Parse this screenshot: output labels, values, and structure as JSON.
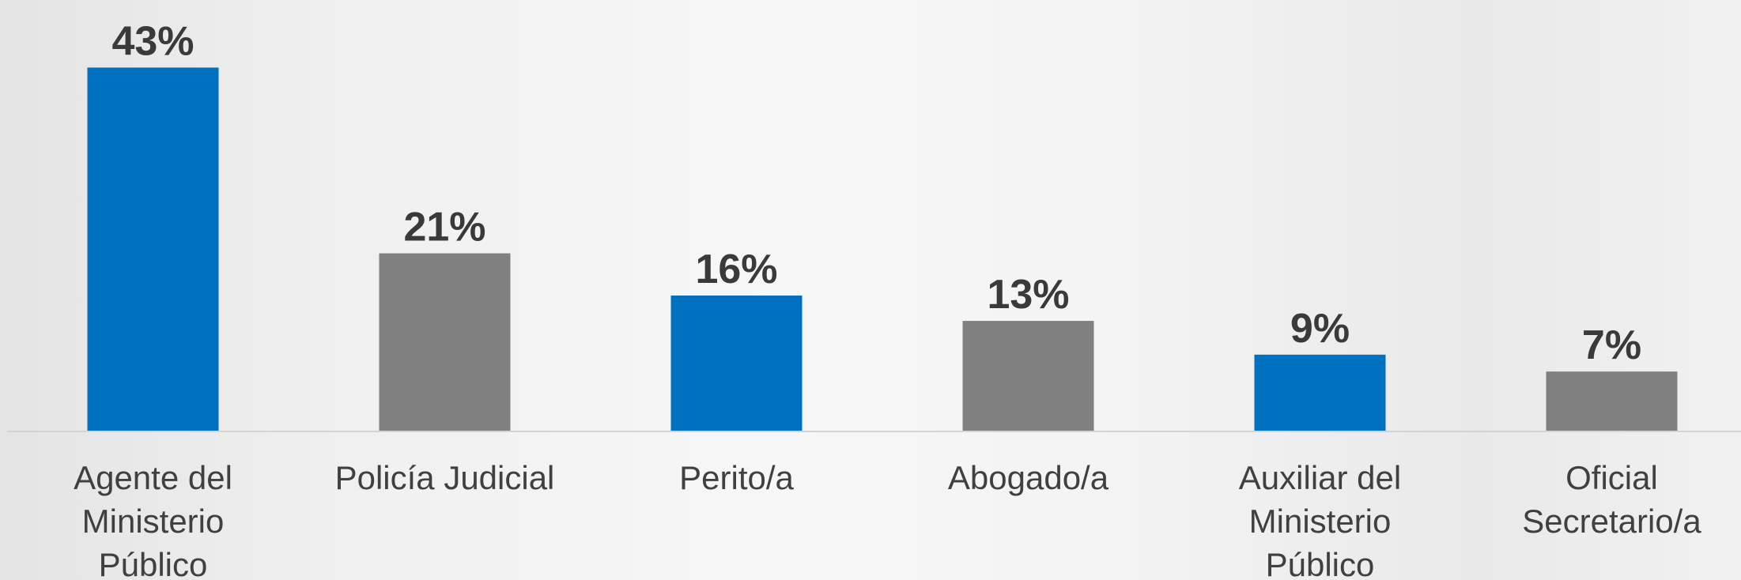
{
  "chart_data": {
    "type": "bar",
    "categories": [
      "Agente del Ministerio Público",
      "Policía Judicial",
      "Perito/a",
      "Abogado/a",
      "Auxiliar del Ministerio Público",
      "Oficial Secretario/a"
    ],
    "values": [
      43,
      21,
      16,
      13,
      9,
      7
    ],
    "value_labels": [
      "43%",
      "21%",
      "16%",
      "13%",
      "9%",
      "7%"
    ],
    "colors": [
      "#0070c0",
      "#808080",
      "#0070c0",
      "#808080",
      "#0070c0",
      "#808080"
    ],
    "ylim": [
      0,
      51
    ]
  }
}
